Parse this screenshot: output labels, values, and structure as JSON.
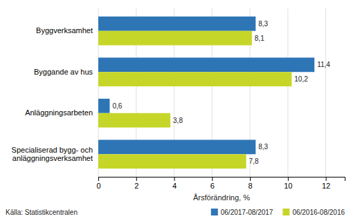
{
  "chart_data": {
    "type": "bar",
    "orientation": "horizontal",
    "categories": [
      "Specialiserad bygg- och\nanläggningsverksamhet",
      "Anläggningsarbeten",
      "Byggande av hus",
      "Byggverksamhet"
    ],
    "series": [
      {
        "name": "06/2017-08/2017",
        "color": "#2E75B6",
        "values": [
          8.3,
          0.6,
          11.4,
          8.3
        ],
        "value_labels": [
          "8,3",
          "0,6",
          "11,4",
          "8,3"
        ]
      },
      {
        "name": "06/2016-08/2016",
        "color": "#C6D629",
        "values": [
          7.8,
          3.8,
          10.2,
          8.1
        ],
        "value_labels": [
          "7,8",
          "3,8",
          "10,2",
          "8,1"
        ]
      }
    ],
    "x_label": "Årsförändring, %",
    "xlim": [
      0,
      13
    ],
    "xticks": [
      0,
      2,
      4,
      6,
      8,
      10,
      12
    ],
    "grid": true,
    "legend": "lower right",
    "data_labels": true,
    "annotations": [
      "Källa: Statistikcentralen"
    ]
  }
}
